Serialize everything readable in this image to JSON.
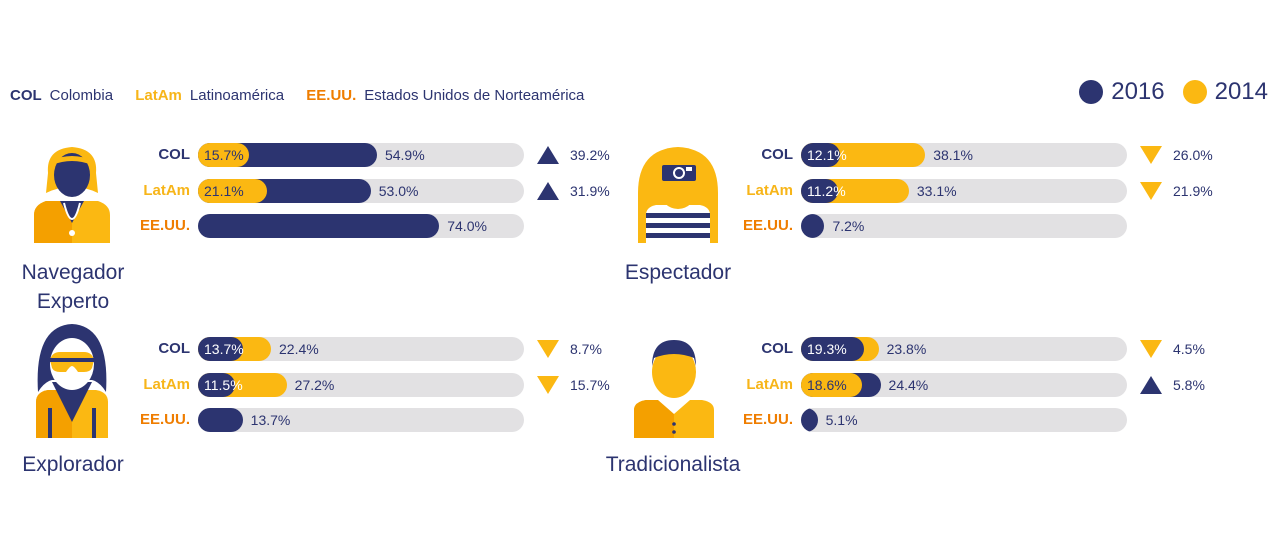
{
  "legend": {
    "abbreviations": [
      {
        "code": "COL",
        "name": "Colombia",
        "color": "#2c3470"
      },
      {
        "code": "LatAm",
        "name": "Latinoamérica",
        "color": "#f7b519"
      },
      {
        "code": "EE.UU.",
        "name": "Estados Unidos de Norteamérica",
        "color": "#ef7d00"
      }
    ],
    "years": [
      {
        "label": "2016",
        "color": "#2c3470"
      },
      {
        "label": "2014",
        "color": "#fbb812"
      }
    ]
  },
  "colors": {
    "navy": "#2c3470",
    "yellow": "#fbb812",
    "orange": "#ef7d00",
    "track": "#e2e1e3"
  },
  "chart_data": {
    "type": "bar",
    "series": [
      {
        "name": "2016"
      },
      {
        "name": "2014"
      }
    ],
    "xlim": [
      0,
      100
    ],
    "personas": [
      {
        "name": "Navegador Experto",
        "icon": "expert-navigator-icon",
        "rows": [
          {
            "region": "COL",
            "v2016": 54.9,
            "v2014": 15.7,
            "label_inside": "15.7%",
            "label_outside": "54.9%",
            "change": "39.2%",
            "direction": "up"
          },
          {
            "region": "LatAm",
            "v2016": 53.0,
            "v2014": 21.1,
            "label_inside": "21.1%",
            "label_outside": "53.0%",
            "change": "31.9%",
            "direction": "up"
          },
          {
            "region": "EE.UU.",
            "v2016": 74.0,
            "v2014": null,
            "label_inside": "",
            "label_outside": "74.0%",
            "change": "",
            "direction": ""
          }
        ]
      },
      {
        "name": "Espectador",
        "icon": "spectator-icon",
        "rows": [
          {
            "region": "COL",
            "v2016": 12.1,
            "v2014": 38.1,
            "label_inside": "12.1%",
            "label_outside": "38.1%",
            "change": "26.0%",
            "direction": "down"
          },
          {
            "region": "LatAm",
            "v2016": 11.2,
            "v2014": 33.1,
            "label_inside": "11.2%",
            "label_outside": "33.1%",
            "change": "21.9%",
            "direction": "down"
          },
          {
            "region": "EE.UU.",
            "v2016": 7.2,
            "v2014": null,
            "label_inside": "",
            "label_outside": "7.2%",
            "change": "",
            "direction": ""
          }
        ]
      },
      {
        "name": "Explorador",
        "icon": "explorer-icon",
        "rows": [
          {
            "region": "COL",
            "v2016": 13.7,
            "v2014": 22.4,
            "label_inside": "13.7%",
            "label_outside": "22.4%",
            "change": "8.7%",
            "direction": "down"
          },
          {
            "region": "LatAm",
            "v2016": 11.5,
            "v2014": 27.2,
            "label_inside": "11.5%",
            "label_outside": "27.2%",
            "change": "15.7%",
            "direction": "down"
          },
          {
            "region": "EE.UU.",
            "v2016": 13.7,
            "v2014": null,
            "label_inside": "",
            "label_outside": "13.7%",
            "change": "",
            "direction": ""
          }
        ]
      },
      {
        "name": "Tradicionalista",
        "icon": "traditionalist-icon",
        "rows": [
          {
            "region": "COL",
            "v2016": 19.3,
            "v2014": 23.8,
            "label_inside": "19.3%",
            "label_outside": "23.8%",
            "change": "4.5%",
            "direction": "down"
          },
          {
            "region": "LatAm",
            "v2016": 24.4,
            "v2014": 18.6,
            "label_inside": "18.6%",
            "label_outside": "24.4%",
            "change": "5.8%",
            "direction": "up"
          },
          {
            "region": "EE.UU.",
            "v2016": 5.1,
            "v2014": null,
            "label_inside": "",
            "label_outside": "5.1%",
            "change": "",
            "direction": ""
          }
        ]
      }
    ]
  }
}
